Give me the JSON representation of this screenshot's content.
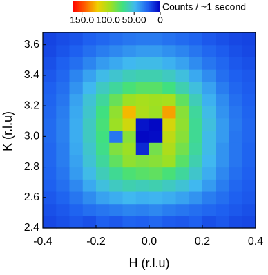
{
  "chart_data": {
    "type": "heatmap",
    "xlabel": "H (r.l.u)",
    "ylabel": "K (r.l.u)",
    "colorbar_label": "Counts / ~1 second",
    "xbins": [
      -0.4,
      -0.35,
      -0.3,
      -0.25,
      -0.2,
      -0.15,
      -0.1,
      -0.05,
      0,
      0.05,
      0.1,
      0.15,
      0.2,
      0.25,
      0.3,
      0.35,
      0.4
    ],
    "ybins": [
      2.4,
      2.48,
      2.56,
      2.64,
      2.72,
      2.8,
      2.88,
      2.96,
      3.04,
      3.12,
      3.2,
      3.28,
      3.36,
      3.44,
      3.52,
      3.6,
      3.68
    ],
    "z": [
      [
        18,
        20,
        22,
        20,
        24,
        22,
        25,
        24,
        26,
        23,
        22,
        24,
        20,
        22,
        19,
        18
      ],
      [
        20,
        22,
        25,
        28,
        30,
        32,
        34,
        33,
        35,
        32,
        30,
        28,
        26,
        24,
        22,
        20
      ],
      [
        22,
        25,
        30,
        36,
        42,
        45,
        48,
        46,
        47,
        45,
        42,
        38,
        32,
        28,
        24,
        22
      ],
      [
        24,
        28,
        35,
        44,
        52,
        58,
        62,
        60,
        62,
        58,
        54,
        48,
        40,
        32,
        26,
        23
      ],
      [
        25,
        30,
        40,
        50,
        60,
        68,
        75,
        78,
        80,
        74,
        66,
        56,
        45,
        35,
        28,
        24
      ],
      [
        26,
        32,
        42,
        54,
        66,
        80,
        92,
        88,
        90,
        95,
        78,
        62,
        48,
        38,
        30,
        25
      ],
      [
        26,
        32,
        44,
        56,
        70,
        88,
        95,
        10,
        85,
        100,
        85,
        66,
        50,
        38,
        30,
        25
      ],
      [
        27,
        33,
        45,
        58,
        72,
        30,
        90,
        2,
        3,
        105,
        90,
        68,
        50,
        40,
        30,
        26
      ],
      [
        27,
        33,
        45,
        58,
        74,
        95,
        110,
        5,
        2,
        112,
        92,
        68,
        52,
        40,
        31,
        26
      ],
      [
        26,
        32,
        44,
        56,
        72,
        92,
        125,
        100,
        95,
        130,
        90,
        66,
        50,
        38,
        30,
        25
      ],
      [
        25,
        30,
        42,
        54,
        66,
        82,
        95,
        98,
        96,
        98,
        80,
        60,
        46,
        36,
        28,
        24
      ],
      [
        24,
        28,
        38,
        48,
        58,
        66,
        74,
        78,
        78,
        72,
        62,
        52,
        42,
        32,
        26,
        23
      ],
      [
        22,
        26,
        34,
        42,
        50,
        55,
        60,
        62,
        62,
        58,
        52,
        44,
        36,
        28,
        24,
        22
      ],
      [
        20,
        24,
        28,
        34,
        40,
        44,
        48,
        50,
        50,
        46,
        42,
        36,
        30,
        26,
        22,
        20
      ],
      [
        18,
        21,
        24,
        28,
        32,
        35,
        38,
        40,
        40,
        37,
        34,
        30,
        26,
        23,
        20,
        18
      ],
      [
        17,
        19,
        21,
        24,
        26,
        28,
        30,
        31,
        31,
        29,
        27,
        25,
        22,
        20,
        18,
        17
      ]
    ],
    "xlim": [
      -0.4,
      0.4
    ],
    "ylim": [
      2.4,
      3.68
    ],
    "xticks": [
      -0.4,
      -0.2,
      {
        "value": 0,
        "label": "0.0"
      },
      0.2,
      0.4
    ],
    "yticks": [
      2.4,
      2.6,
      2.8,
      {
        "value": 3,
        "label": "3.0"
      },
      3.2,
      3.4,
      3.6
    ],
    "clim": [
      0,
      168
    ],
    "cticks": [
      {
        "value": 150,
        "label": "150.0"
      },
      {
        "value": 100,
        "label": "100.0"
      },
      {
        "value": 50,
        "label": "50.00"
      },
      0
    ],
    "colors": [
      "#0000c0",
      "#1e60f0",
      "#40b8f0",
      "#40e080",
      "#a0e020",
      "#f0d000",
      "#ff6000",
      "#ff0000"
    ]
  }
}
